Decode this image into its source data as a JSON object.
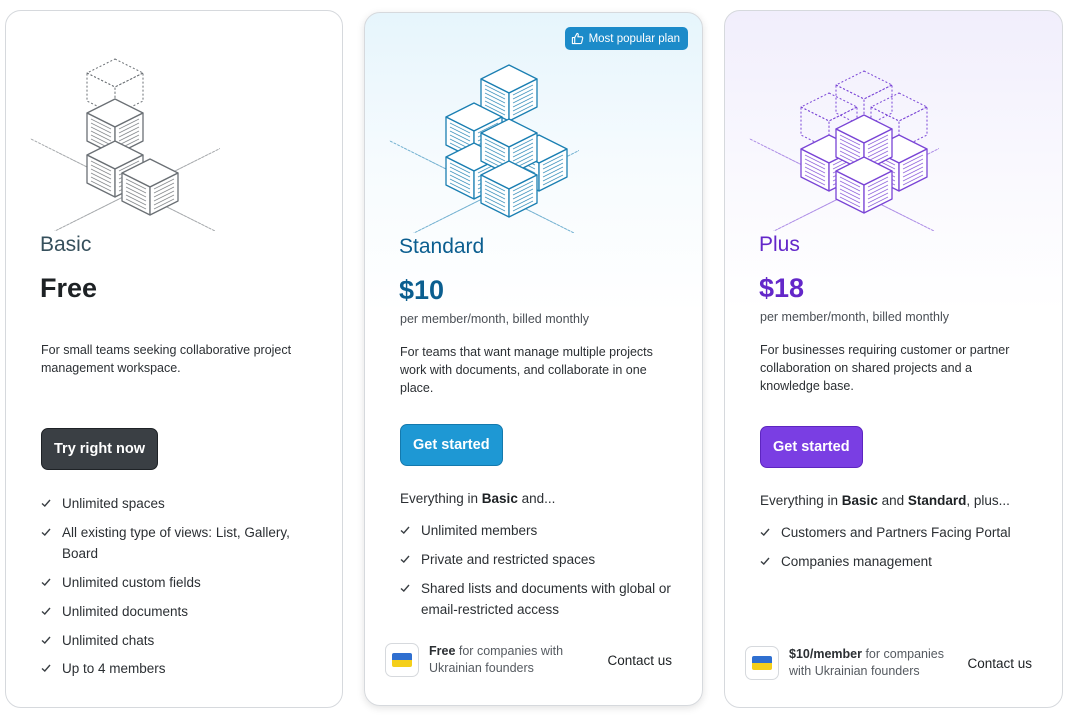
{
  "plans": [
    {
      "name": "Basic",
      "price": "Free",
      "billing": "",
      "description": "For small teams seeking collaborative project management workspace.",
      "cta": "Try right now",
      "intro_prefix": "",
      "features": [
        "Unlimited spaces",
        "All existing type of views: List, Gallery, Board",
        "Unlimited custom fields",
        "Unlimited documents",
        "Unlimited chats",
        "Up to 4 members"
      ],
      "illustration_color": "#6b7075"
    },
    {
      "name": "Standard",
      "price": "$10",
      "billing": "per member/month, billed monthly",
      "badge": "Most popular plan",
      "description": "For teams that want manage multiple projects work with documents, and collaborate in one place.",
      "cta": "Get started",
      "intro_prefix": "Everything in ",
      "intro_bold": "Basic",
      "intro_suffix": " and...",
      "features": [
        "Unlimited members",
        "Private and restricted spaces",
        "Shared lists and documents with global or email-restricted access"
      ],
      "footer_bold": "Free",
      "footer_text": " for companies with Ukrainian founders",
      "contact": "Contact us",
      "illustration_color": "#1b7fb2"
    },
    {
      "name": "Plus",
      "price": "$18",
      "billing": "per member/month, billed monthly",
      "description": "For businesses requiring customer or partner collaboration on shared projects and a knowledge base.",
      "cta": "Get started",
      "intro_prefix": "Everything in ",
      "intro_bold": "Basic",
      "intro_mid": " and ",
      "intro_bold2": "Standard",
      "intro_suffix": ", plus...",
      "features": [
        "Customers and Partners Facing Portal",
        "Companies management"
      ],
      "footer_bold": "$10/member",
      "footer_text": " for companies with Ukrainian founders",
      "contact": "Contact us",
      "illustration_color": "#7a45d6"
    }
  ],
  "colors": {
    "basic_accent": "#36505c",
    "standard_accent": "#0b5e8f",
    "plus_accent": "#6327c9",
    "badge_bg": "#1c8bc9"
  },
  "icons": [
    "cubes-illustration",
    "thumbs-up-icon",
    "check-icon",
    "ukraine-flag-icon"
  ]
}
